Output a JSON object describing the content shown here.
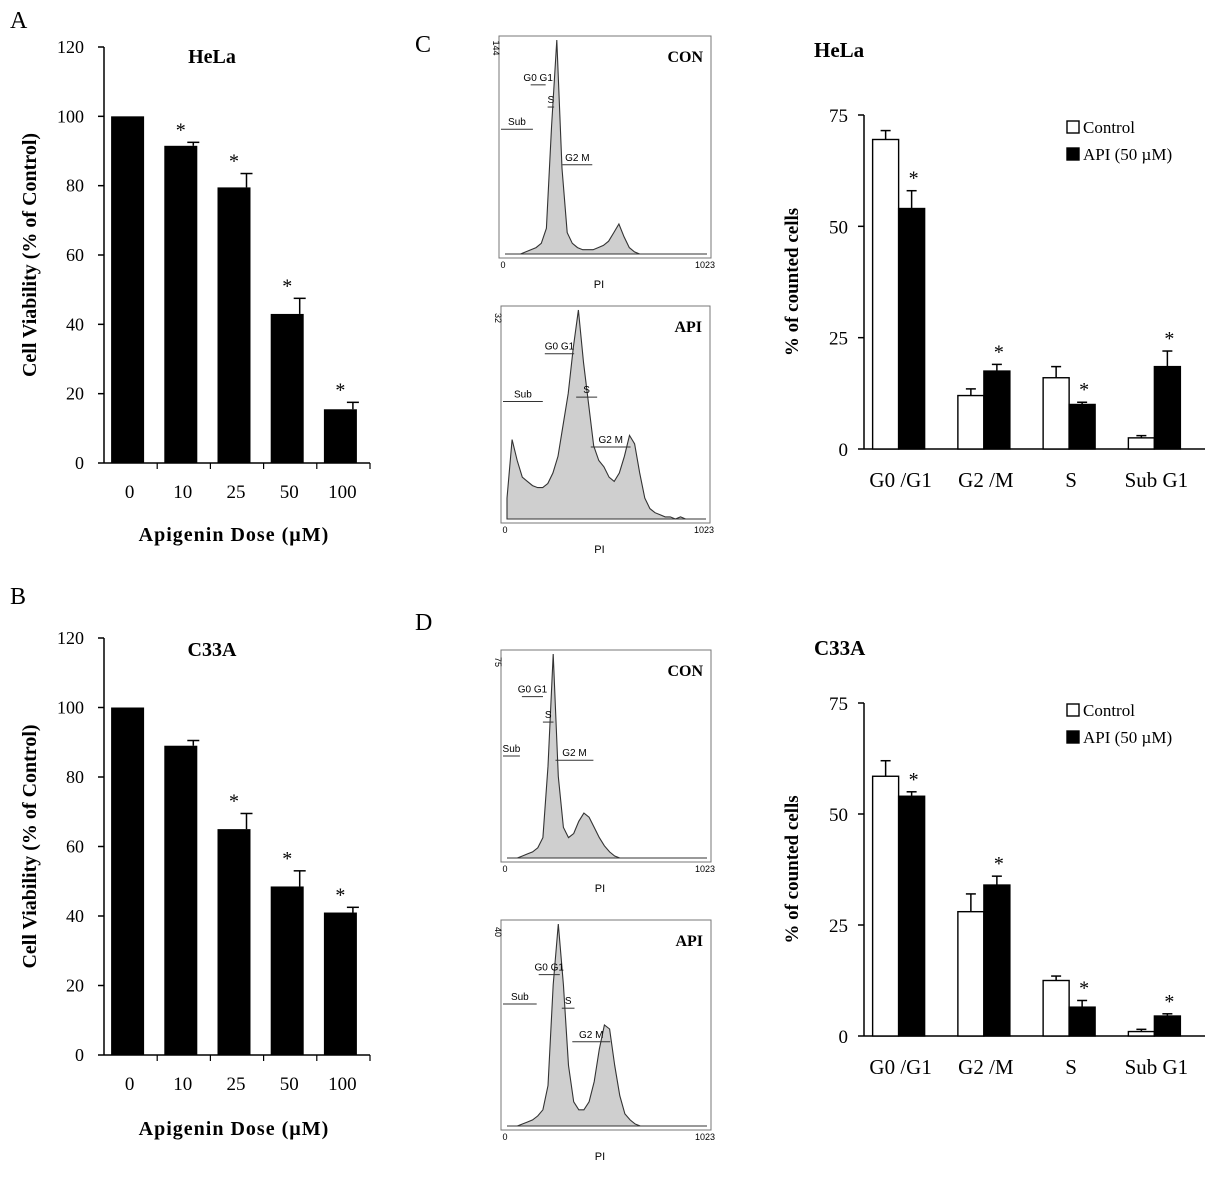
{
  "chart_data": [
    {
      "panel": "A",
      "type": "bar",
      "title": "HeLa",
      "xlabel": "Apigenin Dose (µM)",
      "ylabel": "Cell Viability (% of Control)",
      "categories": [
        "0",
        "10",
        "25",
        "50",
        "100"
      ],
      "values": [
        100,
        91.5,
        79.5,
        43,
        15.5
      ],
      "errors": [
        0,
        1,
        4,
        4.5,
        2
      ],
      "significant": [
        false,
        true,
        true,
        true,
        true
      ],
      "ylim": [
        0,
        120
      ],
      "yticks": [
        "0",
        "20",
        "40",
        "60",
        "80",
        "100",
        "120"
      ],
      "color": "#000000"
    },
    {
      "panel": "B",
      "type": "bar",
      "title": "C33A",
      "xlabel": "Apigenin Dose (µM)",
      "ylabel": "Cell Viability (% of Control)",
      "categories": [
        "0",
        "10",
        "25",
        "50",
        "100"
      ],
      "values": [
        100,
        89,
        65,
        48.5,
        41
      ],
      "errors": [
        0,
        1.5,
        4.5,
        4.5,
        1.5
      ],
      "significant": [
        false,
        false,
        true,
        true,
        true
      ],
      "ylim": [
        0,
        120
      ],
      "yticks": [
        "0",
        "20",
        "40",
        "60",
        "80",
        "100",
        "120"
      ],
      "color": "#000000"
    },
    {
      "panel": "C",
      "type": "bar",
      "title": "HeLa",
      "ylabel": "% of counted cells",
      "categories": [
        "G0 /G1",
        "G2 /M",
        "S",
        "Sub G1"
      ],
      "series": [
        {
          "name": "Control",
          "values": [
            69.5,
            12,
            16,
            2.5
          ],
          "errors": [
            2,
            1.5,
            2.5,
            0.5
          ],
          "significant": [
            false,
            false,
            false,
            false
          ],
          "color": "#ffffff"
        },
        {
          "name": "API (50 µM)",
          "values": [
            54,
            17.5,
            10,
            18.5
          ],
          "errors": [
            4,
            1.5,
            0.5,
            3.5
          ],
          "significant": [
            true,
            true,
            true,
            true
          ],
          "color": "#000000"
        }
      ],
      "ylim": [
        0,
        75
      ],
      "yticks": [
        "0",
        "25",
        "50",
        "75"
      ]
    },
    {
      "panel": "D",
      "type": "bar",
      "title": "C33A",
      "ylabel": "% of counted cells",
      "categories": [
        "G0 /G1",
        "G2 /M",
        "S",
        "Sub G1"
      ],
      "series": [
        {
          "name": "Control",
          "values": [
            58.5,
            28,
            12.5,
            1
          ],
          "errors": [
            3.5,
            4,
            1,
            0.5
          ],
          "significant": [
            false,
            false,
            false,
            false
          ],
          "color": "#ffffff"
        },
        {
          "name": "API (50 µM)",
          "values": [
            54,
            34,
            6.5,
            4.5
          ],
          "errors": [
            1,
            2,
            1.5,
            0.5
          ],
          "significant": [
            true,
            true,
            true,
            true
          ],
          "color": "#000000"
        }
      ],
      "ylim": [
        0,
        75
      ],
      "yticks": [
        "0",
        "25",
        "50",
        "75"
      ]
    }
  ],
  "panel_letters": [
    "A",
    "B",
    "C",
    "D"
  ],
  "significance_mark": "*",
  "histograms": [
    {
      "panel": "C",
      "condition": "CON",
      "ymax_label": "144",
      "xmin_label": "0",
      "xmax_label": "1023",
      "xaxis_label": "PI",
      "gates": [
        "Sub",
        "G0 G1",
        "S",
        "G2 M"
      ],
      "trace": [
        0,
        0,
        0,
        0,
        1,
        2,
        3,
        5,
        12,
        60,
        100,
        40,
        10,
        5,
        3,
        2,
        2,
        2,
        3,
        4,
        6,
        10,
        14,
        8,
        3,
        1,
        0,
        0,
        0,
        0,
        0,
        0,
        0,
        0,
        0,
        0,
        0,
        0,
        0,
        0
      ]
    },
    {
      "panel": "C",
      "condition": "API",
      "ymax_label": "32",
      "xmin_label": "0",
      "xmax_label": "1023",
      "xaxis_label": "PI",
      "gates": [
        "Sub",
        "G0 G1",
        "S",
        "G2 M"
      ],
      "trace": [
        10,
        38,
        28,
        20,
        18,
        16,
        15,
        15,
        17,
        22,
        30,
        45,
        60,
        82,
        100,
        75,
        55,
        35,
        28,
        25,
        20,
        18,
        22,
        30,
        40,
        36,
        22,
        10,
        5,
        3,
        2,
        1,
        1,
        0,
        1,
        0,
        0,
        0,
        0,
        0
      ]
    },
    {
      "panel": "D",
      "condition": "CON",
      "ymax_label": "75",
      "xmin_label": "0",
      "xmax_label": "1023",
      "xaxis_label": "PI",
      "gates": [
        "Sub",
        "G0 G1",
        "S",
        "G2 M"
      ],
      "trace": [
        0,
        0,
        0,
        1,
        2,
        3,
        5,
        10,
        45,
        100,
        40,
        15,
        10,
        12,
        18,
        22,
        20,
        15,
        10,
        6,
        3,
        1,
        0,
        0,
        0,
        0,
        0,
        0,
        0,
        0,
        0,
        0,
        0,
        0,
        0,
        0,
        0,
        0,
        0,
        0
      ]
    },
    {
      "panel": "D",
      "condition": "API",
      "ymax_label": "40",
      "xmin_label": "0",
      "xmax_label": "1023",
      "xaxis_label": "PI",
      "gates": [
        "Sub",
        "G0 G1",
        "S",
        "G2 M"
      ],
      "trace": [
        0,
        0,
        0,
        1,
        2,
        3,
        5,
        8,
        20,
        70,
        100,
        70,
        30,
        12,
        8,
        8,
        12,
        22,
        38,
        50,
        48,
        30,
        15,
        6,
        3,
        1,
        0,
        0,
        0,
        0,
        0,
        0,
        0,
        0,
        0,
        0,
        0,
        0,
        0,
        0
      ]
    }
  ]
}
